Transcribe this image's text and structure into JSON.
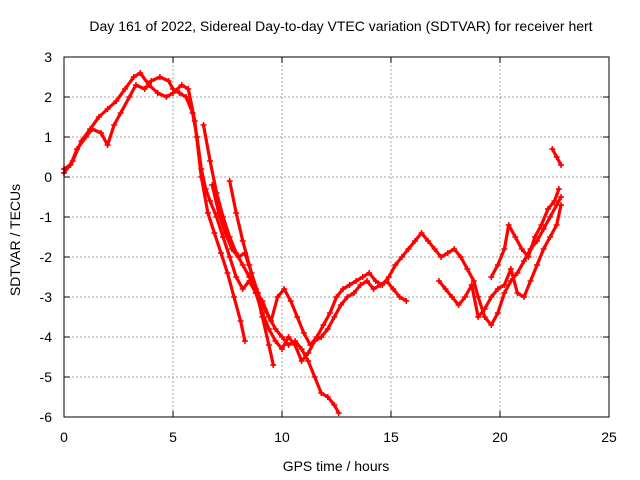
{
  "chart_data": {
    "type": "scatter",
    "title": "Day 161 of 2022, Sidereal Day-to-day VTEC variation (SDTVAR) for receiver hert",
    "xlabel": "GPS time / hours",
    "ylabel": "SDTVAR / TECUs",
    "xlim": [
      0,
      25
    ],
    "ylim": [
      -6,
      3
    ],
    "xticks": [
      "0",
      "5",
      "10",
      "15",
      "20",
      "25"
    ],
    "yticks": [
      "3",
      "2",
      "1",
      "0",
      "-1",
      "-2",
      "-3",
      "-4",
      "-5",
      "-6"
    ],
    "grid": true,
    "marker": "+",
    "color": "#ff0000",
    "series": [
      {
        "name": "trace-1",
        "x": [
          0.0,
          0.3,
          0.6,
          1.0,
          1.3,
          1.7,
          2.0,
          2.3,
          2.6,
          3.0,
          3.3,
          3.7,
          4.0,
          4.4,
          4.8,
          5.0,
          5.3,
          5.6,
          5.9,
          6.1,
          6.3,
          6.5,
          6.7,
          7.0,
          7.3,
          7.6,
          7.9,
          8.2,
          8.5,
          8.8,
          9.1,
          9.4,
          9.7,
          10.0,
          10.3,
          10.6,
          10.9,
          11.2,
          11.5,
          11.8,
          12.1,
          12.4,
          12.6
        ],
        "y": [
          0.2,
          0.3,
          0.7,
          1.0,
          1.2,
          1.1,
          0.8,
          1.3,
          1.6,
          2.0,
          2.3,
          2.2,
          2.4,
          2.5,
          2.4,
          2.2,
          2.1,
          2.0,
          1.6,
          1.0,
          0.2,
          -0.3,
          -0.6,
          -1.0,
          -1.5,
          -2.0,
          -2.5,
          -2.8,
          -2.6,
          -2.9,
          -3.1,
          -3.5,
          -3.8,
          -4.0,
          -4.2,
          -4.1,
          -4.3,
          -4.6,
          -5.0,
          -5.4,
          -5.5,
          -5.7,
          -5.9
        ]
      },
      {
        "name": "trace-2",
        "x": [
          0.0,
          0.4,
          0.8,
          1.2,
          1.6,
          2.0,
          2.4,
          2.8,
          3.2,
          3.5,
          3.9,
          4.3,
          4.7,
          5.0,
          5.4,
          5.7,
          6.0,
          6.3,
          6.6,
          6.9,
          7.2,
          7.5,
          7.8,
          8.1,
          8.3
        ],
        "y": [
          0.1,
          0.4,
          0.9,
          1.2,
          1.5,
          1.7,
          1.9,
          2.2,
          2.5,
          2.6,
          2.3,
          2.1,
          2.0,
          2.1,
          2.3,
          2.2,
          1.4,
          0.0,
          -0.9,
          -1.4,
          -1.9,
          -2.4,
          -3.0,
          -3.6,
          -4.1
        ]
      },
      {
        "name": "trace-3",
        "x": [
          6.4,
          6.7,
          7.0,
          7.3,
          7.6,
          7.9,
          8.2,
          8.5,
          8.8,
          9.1,
          9.4,
          9.7,
          10.0,
          10.3,
          10.6,
          10.9,
          11.2,
          11.5,
          11.8,
          12.1,
          12.4,
          12.7,
          13.0,
          13.3,
          13.6,
          13.9,
          14.2,
          14.5,
          14.8,
          15.1,
          15.4,
          15.7
        ],
        "y": [
          1.3,
          0.4,
          -0.4,
          -1.0,
          -1.5,
          -1.9,
          -2.2,
          -2.5,
          -2.9,
          -3.4,
          -3.8,
          -4.1,
          -4.3,
          -4.0,
          -4.2,
          -4.6,
          -4.4,
          -4.1,
          -4.0,
          -3.8,
          -3.5,
          -3.2,
          -3.0,
          -2.9,
          -2.7,
          -2.6,
          -2.8,
          -2.7,
          -2.6,
          -2.8,
          -3.0,
          -3.1
        ]
      },
      {
        "name": "trace-4",
        "x": [
          6.8,
          7.1,
          7.4,
          7.7,
          8.0,
          8.3,
          8.6,
          8.9,
          9.2,
          9.5,
          9.8,
          10.1,
          10.4,
          10.7,
          11.0,
          11.3,
          11.6,
          11.9,
          12.2,
          12.5,
          12.8,
          13.1,
          13.4,
          13.7,
          14.0,
          14.3,
          14.6,
          14.9,
          15.2,
          15.5,
          15.8,
          16.1,
          16.4,
          16.7,
          17.0,
          17.3,
          17.6,
          17.9,
          18.2,
          18.5,
          18.8,
          19.0,
          19.3,
          19.6,
          19.9,
          20.2,
          20.5,
          20.8,
          21.1,
          21.4,
          21.7,
          22.0,
          22.3,
          22.6,
          22.8
        ],
        "y": [
          -0.2,
          -0.9,
          -1.4,
          -1.8,
          -2.0,
          -1.9,
          -2.4,
          -2.9,
          -3.3,
          -3.6,
          -3.0,
          -2.8,
          -3.1,
          -3.5,
          -3.9,
          -4.2,
          -4.0,
          -3.7,
          -3.4,
          -3.0,
          -2.8,
          -2.7,
          -2.6,
          -2.5,
          -2.4,
          -2.6,
          -2.7,
          -2.5,
          -2.2,
          -2.0,
          -1.8,
          -1.6,
          -1.4,
          -1.6,
          -1.8,
          -2.0,
          -1.9,
          -1.8,
          -2.0,
          -2.3,
          -2.6,
          -3.0,
          -3.5,
          -3.7,
          -3.4,
          -2.9,
          -2.6,
          -2.4,
          -2.1,
          -1.8,
          -1.6,
          -1.3,
          -1.0,
          -0.7,
          -0.5
        ]
      },
      {
        "name": "trace-5",
        "x": [
          7.6,
          7.9,
          8.2,
          8.5,
          8.8,
          9.1,
          9.4,
          9.6
        ],
        "y": [
          -0.1,
          -0.9,
          -1.6,
          -2.2,
          -2.8,
          -3.5,
          -4.2,
          -4.7
        ]
      },
      {
        "name": "trace-6",
        "x": [
          17.2,
          17.5,
          17.8,
          18.1,
          18.4,
          18.7,
          19.0,
          19.3,
          19.6,
          19.9,
          20.2,
          20.5,
          20.8,
          21.1,
          21.4,
          21.7,
          22.0,
          22.3,
          22.6,
          22.8
        ],
        "y": [
          -2.6,
          -2.8,
          -3.0,
          -3.2,
          -3.0,
          -2.7,
          -3.5,
          -3.3,
          -3.0,
          -2.8,
          -2.7,
          -2.3,
          -2.9,
          -3.0,
          -2.6,
          -2.2,
          -1.8,
          -1.5,
          -1.2,
          -0.7
        ]
      },
      {
        "name": "trace-7",
        "x": [
          19.6,
          19.9,
          20.2,
          20.4,
          20.7,
          21.0,
          21.3,
          21.6,
          21.9,
          22.2,
          22.5,
          22.7
        ],
        "y": [
          -2.5,
          -2.2,
          -1.8,
          -1.2,
          -1.5,
          -1.8,
          -2.0,
          -1.5,
          -1.2,
          -0.8,
          -0.6,
          -0.3
        ]
      },
      {
        "name": "trace-8",
        "x": [
          22.4,
          22.6,
          22.8
        ],
        "y": [
          0.7,
          0.5,
          0.3
        ]
      }
    ]
  }
}
